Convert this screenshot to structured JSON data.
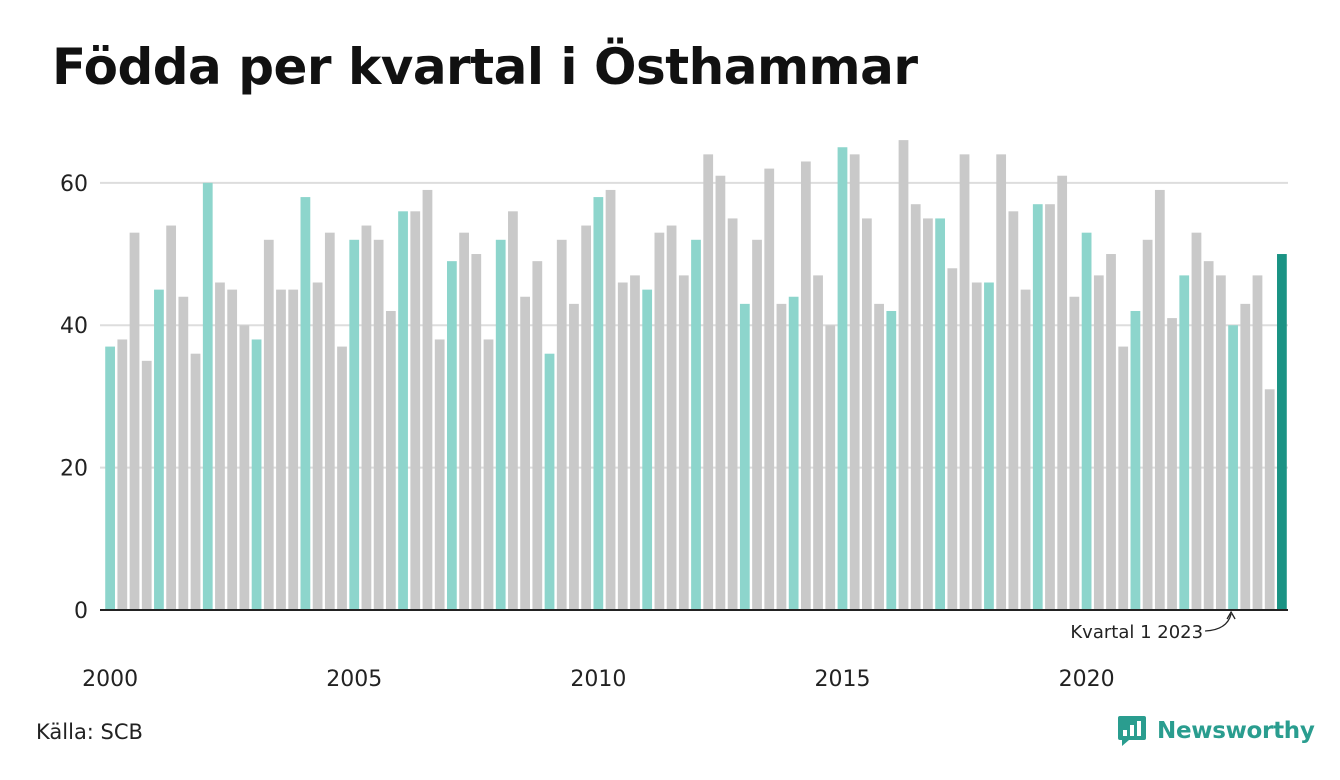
{
  "title": "Födda per kvartal i Östhammar",
  "source": "Källa: SCB",
  "brand": "Newsworthy",
  "colors": {
    "q1_bar": "#8dd5cc",
    "other_bar": "#c9c9c9",
    "latest_bar": "#1a9384",
    "grid": "#dddddd",
    "brand": "#2a9d8f"
  },
  "chart_data": {
    "type": "bar",
    "title": "Födda per kvartal i Östhammar",
    "xlabel": "",
    "ylabel": "",
    "ylim": [
      0,
      67
    ],
    "yticks": [
      0,
      20,
      40,
      60
    ],
    "xtick_labels": [
      "2000",
      "2005",
      "2010",
      "2015",
      "2020"
    ],
    "grid": true,
    "start": {
      "year": 2000,
      "quarter": 1
    },
    "annotation": {
      "text": "Kvartal 1 2023",
      "year": 2023,
      "quarter": 1
    },
    "values": [
      37,
      38,
      53,
      35,
      45,
      54,
      44,
      36,
      60,
      46,
      45,
      40,
      38,
      52,
      45,
      45,
      58,
      46,
      53,
      37,
      52,
      54,
      52,
      42,
      56,
      56,
      59,
      38,
      49,
      53,
      50,
      38,
      52,
      56,
      44,
      49,
      36,
      52,
      43,
      54,
      58,
      59,
      46,
      47,
      45,
      53,
      54,
      47,
      52,
      64,
      61,
      55,
      43,
      52,
      62,
      43,
      44,
      63,
      47,
      40,
      65,
      64,
      55,
      43,
      42,
      66,
      57,
      55,
      55,
      48,
      64,
      46,
      46,
      64,
      56,
      45,
      57,
      57,
      61,
      44,
      53,
      47,
      50,
      37,
      42,
      52,
      59,
      41,
      47,
      53,
      49,
      47,
      40,
      43,
      47,
      31,
      50
    ]
  }
}
